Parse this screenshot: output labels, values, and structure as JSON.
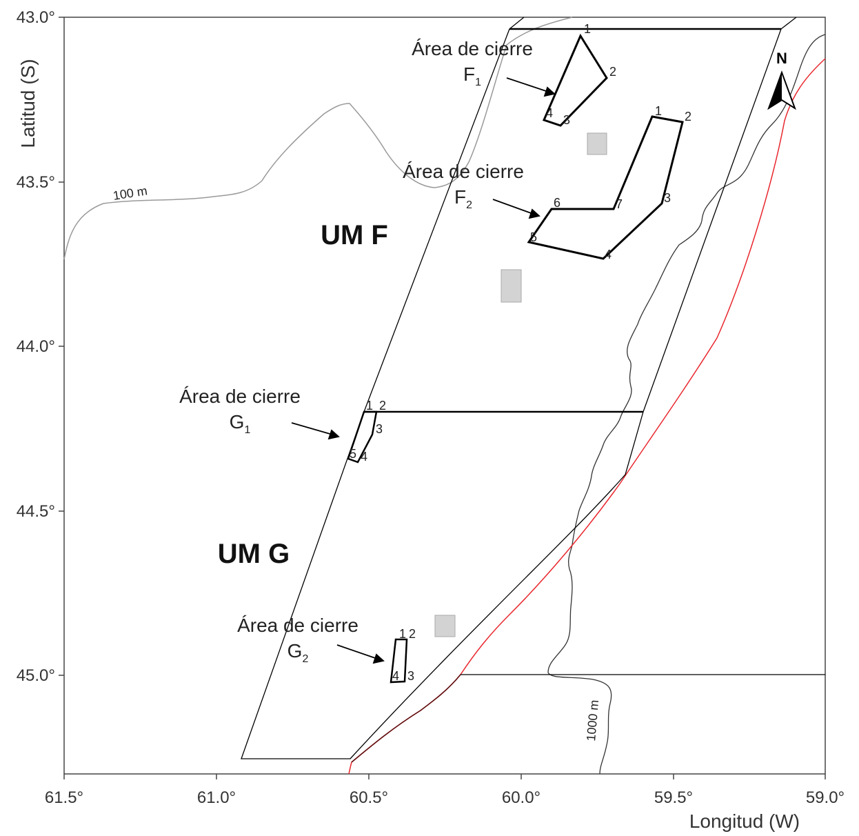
{
  "axes": {
    "x_title": "Longitud (W)",
    "y_title": "Latitud (S)",
    "x_ticks": [
      "61.5°",
      "61.0°",
      "60.5°",
      "60.0°",
      "59.5°",
      "59.0°"
    ],
    "y_ticks": [
      "43.0°",
      "43.5°",
      "44.0°",
      "44.5°",
      "45.0°"
    ]
  },
  "zones": {
    "f_label": "UM F",
    "g_label": "UM G"
  },
  "closure_areas": [
    {
      "title": "Área de cierre",
      "base": "F",
      "sub": "1"
    },
    {
      "title": "Área de cierre",
      "base": "F",
      "sub": "2"
    },
    {
      "title": "Área de cierre",
      "base": "G",
      "sub": "1"
    },
    {
      "title": "Área de cierre",
      "base": "G",
      "sub": "2"
    }
  ],
  "vertices": {
    "f1": [
      "1",
      "2",
      "3",
      "4"
    ],
    "f2": [
      "1",
      "2",
      "3",
      "4",
      "5",
      "6",
      "7"
    ],
    "g1": [
      "1",
      "2",
      "3",
      "4",
      "5"
    ],
    "g2": [
      "1",
      "2",
      "3",
      "4"
    ]
  },
  "contours": {
    "shallow": "100 m",
    "deep": "1000 m"
  },
  "north_arrow": "N",
  "colors": {
    "boundary_line": "#e8262d",
    "contour": "#999999",
    "box": "#d3d3d3"
  }
}
